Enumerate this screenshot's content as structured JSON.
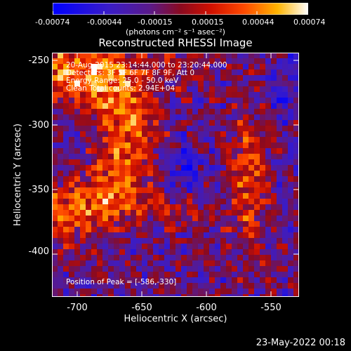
{
  "colorbar": {
    "tick_labels": [
      "-0.00074",
      "-0.00044",
      "-0.00015",
      "0.00015",
      "0.00044",
      "0.00074"
    ],
    "units_label": "(photons cm⁻² s⁻¹ asec⁻²)"
  },
  "plot": {
    "title": "Reconstructed RHESSI Image",
    "info_lines": [
      "20-Aug-2015 23:14:44.000 to 23:20:44.000",
      "Detectors: 3F 5F 6F 7F 8F 9F, Att 0",
      "Energy Range: 25.0 - 50.0 keV",
      "Clean    Total counts: 2.94E+04"
    ],
    "peak_label": "Position of Peak = [-586,-330]",
    "x_axis_label": "Heliocentric X (arcsec)",
    "y_axis_label": "Heliocentric Y (arcsec)",
    "x_ticks": [
      "-700",
      "-650",
      "-600",
      "-550"
    ],
    "y_ticks": [
      "-250",
      "-300",
      "-350",
      "-400"
    ]
  },
  "footer": {
    "timestamp": "23-May-2022 00:18"
  }
}
